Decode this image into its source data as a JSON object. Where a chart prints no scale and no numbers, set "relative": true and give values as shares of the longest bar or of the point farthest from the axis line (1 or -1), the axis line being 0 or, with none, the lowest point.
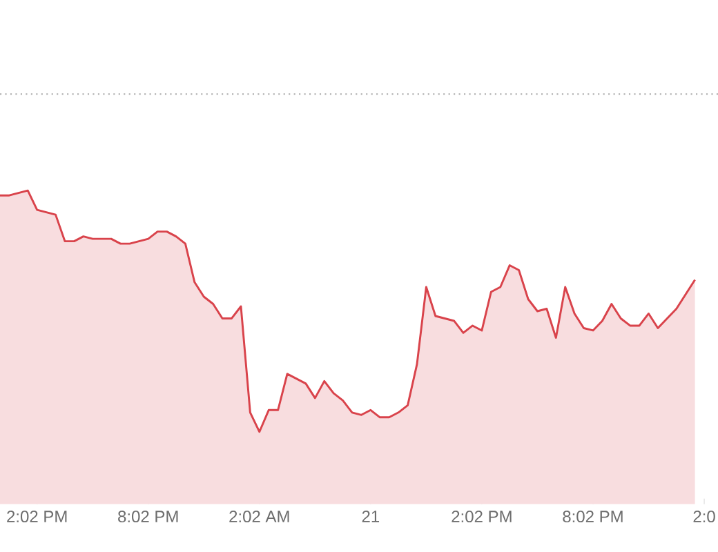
{
  "chart_data": {
    "type": "area",
    "relative": true,
    "color": "#d9434b",
    "line_style": "solid",
    "marker": "none",
    "categories": [
      null,
      null,
      null,
      null,
      "2:02 PM",
      null,
      null,
      null,
      null,
      null,
      null,
      null,
      null,
      null,
      null,
      null,
      "8:02 PM",
      null,
      null,
      null,
      null,
      null,
      null,
      null,
      null,
      null,
      null,
      null,
      "2:02 AM",
      null,
      null,
      null,
      null,
      null,
      null,
      null,
      null,
      null,
      null,
      null,
      "21",
      null,
      null,
      null,
      null,
      null,
      null,
      null,
      null,
      null,
      null,
      null,
      "2:02 PM",
      null,
      null,
      null,
      null,
      null,
      null,
      null,
      null,
      null,
      null,
      null,
      "8:02 PM",
      null,
      null,
      null,
      null,
      null,
      null,
      null,
      null,
      null,
      null,
      null,
      "2:0"
    ],
    "values": [
      0.98,
      0.98,
      0.99,
      1.0,
      0.92,
      0.91,
      0.9,
      0.79,
      0.79,
      0.81,
      0.8,
      0.8,
      0.8,
      0.78,
      0.78,
      0.79,
      0.8,
      0.83,
      0.83,
      0.81,
      0.78,
      0.62,
      0.56,
      0.53,
      0.47,
      0.47,
      0.52,
      0.08,
      0,
      0.09,
      0.09,
      0.24,
      0.22,
      0.2,
      0.14,
      0.21,
      0.16,
      0.13,
      0.08,
      0.07,
      0.09,
      0.06,
      0.06,
      0.08,
      0.11,
      0.28,
      0.6,
      0.48,
      0.47,
      0.46,
      0.41,
      0.44,
      0.42,
      0.58,
      0.6,
      0.69,
      0.67,
      0.55,
      0.5,
      0.51,
      0.39,
      0.6,
      0.49,
      0.43,
      0.42,
      0.46,
      0.53,
      0.47,
      0.44,
      0.44,
      0.49,
      0.43,
      0.47,
      0.51,
      0.57,
      0.63,
      null
    ],
    "ref_lines": [
      {
        "axis": "y",
        "value": 1.4,
        "line_style": "dotted",
        "color": "#b0b0b0"
      }
    ]
  }
}
